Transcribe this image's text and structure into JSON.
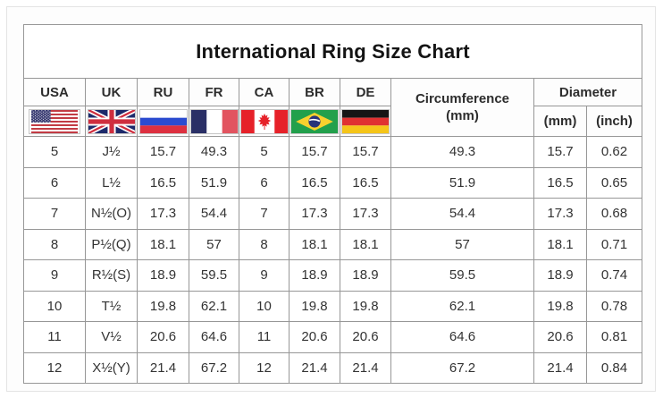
{
  "title": "International Ring Size Chart",
  "header": {
    "columns": [
      {
        "code": "USA",
        "icon": "usa-flag-icon"
      },
      {
        "code": "UK",
        "icon": "uk-flag-icon"
      },
      {
        "code": "RU",
        "icon": "russia-flag-icon"
      },
      {
        "code": "FR",
        "icon": "france-flag-icon"
      },
      {
        "code": "CA",
        "icon": "canada-flag-icon"
      },
      {
        "code": "BR",
        "icon": "brazil-flag-icon"
      },
      {
        "code": "DE",
        "icon": "germany-flag-icon"
      }
    ],
    "circumference": {
      "label": "Circumference",
      "unit": "(mm)"
    },
    "diameter": {
      "label": "Diameter",
      "units": [
        "(mm)",
        "(inch)"
      ]
    }
  },
  "colors": {
    "table_border": "#979797",
    "text": "#2d2d2d",
    "background": "#ffffff"
  },
  "chart_data": {
    "type": "table",
    "title": "International Ring Size Chart",
    "columns": [
      "USA",
      "UK",
      "RU",
      "FR",
      "CA",
      "BR",
      "DE",
      "Circumference (mm)",
      "Diameter (mm)",
      "Diameter (inch)"
    ],
    "rows": [
      [
        "5",
        "J½",
        "15.7",
        "49.3",
        "5",
        "15.7",
        "15.7",
        "49.3",
        "15.7",
        "0.62"
      ],
      [
        "6",
        "L½",
        "16.5",
        "51.9",
        "6",
        "16.5",
        "16.5",
        "51.9",
        "16.5",
        "0.65"
      ],
      [
        "7",
        "N½(O)",
        "17.3",
        "54.4",
        "7",
        "17.3",
        "17.3",
        "54.4",
        "17.3",
        "0.68"
      ],
      [
        "8",
        "P½(Q)",
        "18.1",
        "57",
        "8",
        "18.1",
        "18.1",
        "57",
        "18.1",
        "0.71"
      ],
      [
        "9",
        "R½(S)",
        "18.9",
        "59.5",
        "9",
        "18.9",
        "18.9",
        "59.5",
        "18.9",
        "0.74"
      ],
      [
        "10",
        "T½",
        "19.8",
        "62.1",
        "10",
        "19.8",
        "19.8",
        "62.1",
        "19.8",
        "0.78"
      ],
      [
        "11",
        "V½",
        "20.6",
        "64.6",
        "11",
        "20.6",
        "20.6",
        "64.6",
        "20.6",
        "0.81"
      ],
      [
        "12",
        "X½(Y)",
        "21.4",
        "67.2",
        "12",
        "21.4",
        "21.4",
        "67.2",
        "21.4",
        "0.84"
      ]
    ]
  }
}
